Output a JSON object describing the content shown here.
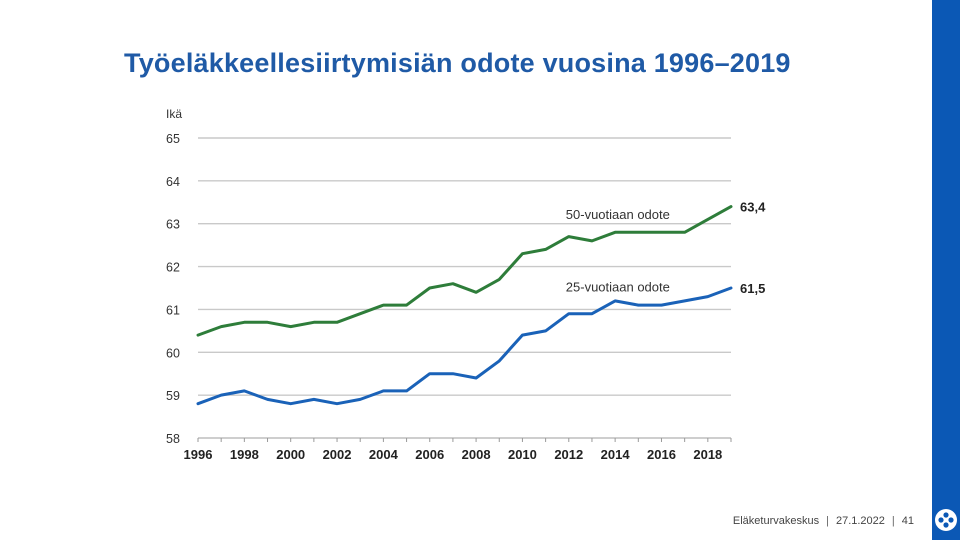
{
  "slide": {
    "title": "Työeläkkeellesiirtymisiän odote vuosina 1996–2019",
    "footer": {
      "organization": "Eläketurvakeskus",
      "date": "27.1.2022",
      "page": "41"
    },
    "accent_color": "#0b58b5"
  },
  "chart_data": {
    "type": "line",
    "title": "Työeläkkeellesiirtymisiän odote vuosina 1996–2019",
    "ylabel": "Ikä",
    "xlabel": "",
    "ylim": [
      58,
      65
    ],
    "yticks": [
      58,
      59,
      60,
      61,
      62,
      63,
      64,
      65
    ],
    "xlim": [
      1996,
      2019
    ],
    "xticks": [
      1996,
      1998,
      2000,
      2002,
      2004,
      2006,
      2008,
      2010,
      2012,
      2014,
      2016,
      2018
    ],
    "grid": true,
    "x": [
      1996,
      1997,
      1998,
      1999,
      2000,
      2001,
      2002,
      2003,
      2004,
      2005,
      2006,
      2007,
      2008,
      2009,
      2010,
      2011,
      2012,
      2013,
      2014,
      2015,
      2016,
      2017,
      2018,
      2019
    ],
    "series": [
      {
        "name": "50-vuotiaan odote",
        "color": "#2e7d3a",
        "end_label": "63,4",
        "values": [
          60.4,
          60.6,
          60.7,
          60.7,
          60.6,
          60.7,
          60.7,
          60.9,
          61.1,
          61.1,
          61.5,
          61.6,
          61.4,
          61.7,
          62.3,
          62.4,
          62.7,
          62.6,
          62.8,
          62.8,
          62.8,
          62.8,
          63.1,
          63.4
        ]
      },
      {
        "name": "25-vuotiaan odote",
        "color": "#1a62b8",
        "end_label": "61,5",
        "values": [
          58.8,
          59.0,
          59.1,
          58.9,
          58.8,
          58.9,
          58.8,
          58.9,
          59.1,
          59.1,
          59.5,
          59.5,
          59.4,
          59.8,
          60.4,
          60.5,
          60.9,
          60.9,
          61.2,
          61.1,
          61.1,
          61.2,
          61.3,
          61.5
        ]
      }
    ]
  }
}
